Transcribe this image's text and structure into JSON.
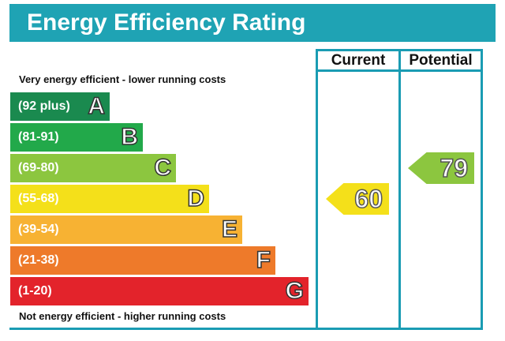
{
  "title": "Energy Efficiency Rating",
  "columns": {
    "current": "Current",
    "potential": "Potential"
  },
  "captions": {
    "top": "Very energy efficient - lower running costs",
    "bottom": "Not energy efficient - higher running costs"
  },
  "chart_data": {
    "type": "bar",
    "bands": [
      {
        "letter": "A",
        "range": "(92 plus)",
        "min": 92,
        "max": null,
        "color": "#1a8a4f"
      },
      {
        "letter": "B",
        "range": "(81-91)",
        "min": 81,
        "max": 91,
        "color": "#22a94a"
      },
      {
        "letter": "C",
        "range": "(69-80)",
        "min": 69,
        "max": 80,
        "color": "#8cc63f"
      },
      {
        "letter": "D",
        "range": "(55-68)",
        "min": 55,
        "max": 68,
        "color": "#f4e01a"
      },
      {
        "letter": "E",
        "range": "(39-54)",
        "min": 39,
        "max": 54,
        "color": "#f7b233"
      },
      {
        "letter": "F",
        "range": "(21-38)",
        "min": 21,
        "max": 38,
        "color": "#ee7a2a"
      },
      {
        "letter": "G",
        "range": "(1-20)",
        "min": 1,
        "max": 20,
        "color": "#e3232b"
      }
    ],
    "ratings": {
      "current": {
        "value": 60,
        "band": "D",
        "color": "#f4e01a"
      },
      "potential": {
        "value": 79,
        "band": "C",
        "color": "#8cc63f"
      }
    }
  }
}
